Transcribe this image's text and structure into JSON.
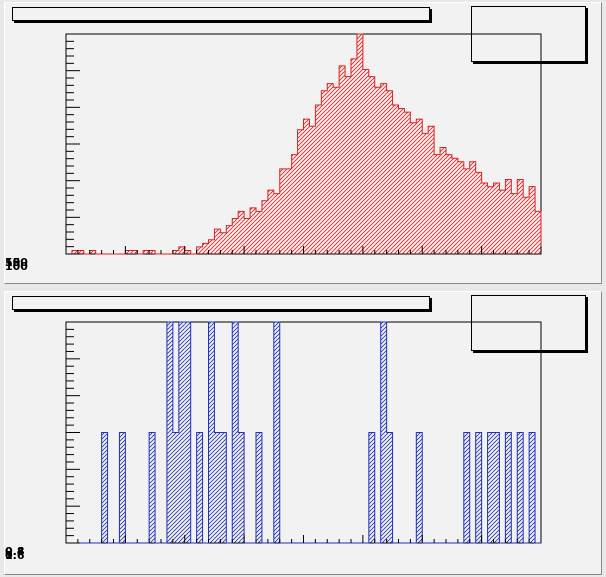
{
  "chart_data": [
    {
      "type": "histogram",
      "color": "#e02020",
      "fill": "hatched",
      "title": "",
      "xlabel": "",
      "ylabel": "",
      "ylim": [
        0,
        62
      ],
      "y_tick_labels": [
        "50",
        "100",
        "150"
      ],
      "stats_box": "",
      "bins": 80,
      "values": [
        0,
        1,
        1,
        0,
        1,
        0,
        0,
        0,
        0,
        0,
        1,
        1,
        0,
        1,
        1,
        0,
        0,
        0,
        1,
        2,
        1,
        0,
        2,
        3,
        4,
        7,
        6,
        8,
        10,
        12,
        10,
        13,
        12,
        15,
        18,
        17,
        24,
        24,
        28,
        35,
        38,
        36,
        42,
        46,
        48,
        47,
        53,
        50,
        55,
        62,
        52,
        50,
        47,
        48,
        46,
        42,
        41,
        40,
        37,
        38,
        34,
        36,
        28,
        30,
        28,
        27,
        26,
        24,
        26,
        23,
        20,
        19,
        20,
        18,
        21,
        17,
        21,
        16,
        19,
        12
      ]
    },
    {
      "type": "histogram",
      "color": "#2030c0",
      "fill": "hatched",
      "title": "",
      "xlabel": "",
      "ylabel": "",
      "ylim": [
        0,
        2
      ],
      "y_tick_labels": [
        "0.4",
        "0.6",
        "0.8",
        "1"
      ],
      "stats_box": "",
      "bins": 80,
      "values": [
        0,
        0,
        0,
        0,
        0,
        0,
        1,
        0,
        0,
        1,
        0,
        0,
        0,
        0,
        1,
        0,
        0,
        2,
        1,
        2,
        2,
        0,
        1,
        0,
        2,
        1,
        1,
        0,
        2,
        1,
        0,
        0,
        1,
        0,
        0,
        2,
        0,
        0,
        0,
        0,
        0,
        0,
        0,
        0,
        0,
        0,
        0,
        0,
        0,
        0,
        0,
        1,
        0,
        2,
        1,
        0,
        0,
        0,
        0,
        1,
        0,
        0,
        0,
        0,
        0,
        0,
        0,
        1,
        0,
        1,
        0,
        1,
        1,
        0,
        1,
        0,
        1,
        0,
        1,
        0
      ]
    }
  ]
}
